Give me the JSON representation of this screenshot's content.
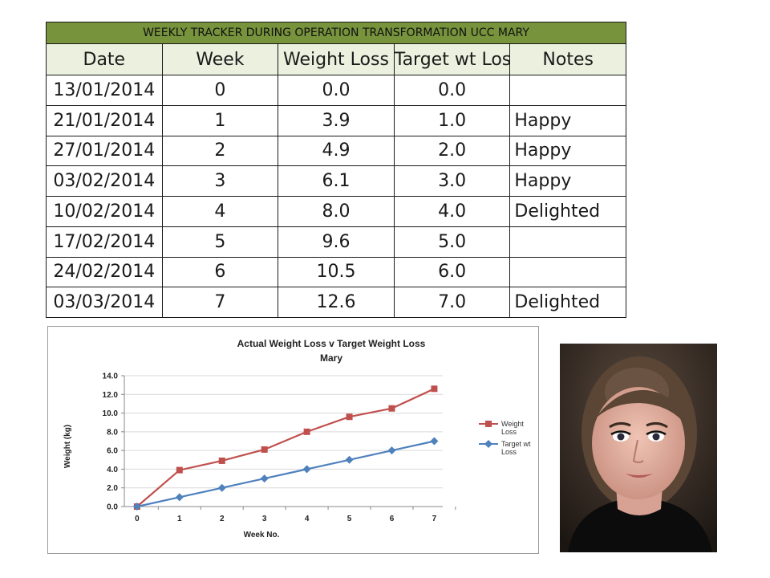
{
  "table": {
    "title": "WEEKLY TRACKER DURING OPERATION TRANSFORMATION UCC MARY",
    "headers": [
      "Date",
      "Week",
      "Weight Loss",
      "Target wt Loss",
      "Notes"
    ],
    "rows": [
      [
        "13/01/2014",
        "0",
        "0.0",
        "0.0",
        ""
      ],
      [
        "21/01/2014",
        "1",
        "3.9",
        "1.0",
        "Happy"
      ],
      [
        "27/01/2014",
        "2",
        "4.9",
        "2.0",
        "Happy"
      ],
      [
        "03/02/2014",
        "3",
        "6.1",
        "3.0",
        "Happy"
      ],
      [
        "10/02/2014",
        "4",
        "8.0",
        "4.0",
        "Delighted"
      ],
      [
        "17/02/2014",
        "5",
        "9.6",
        "5.0",
        ""
      ],
      [
        "24/02/2014",
        "6",
        "10.5",
        "6.0",
        ""
      ],
      [
        "03/03/2014",
        "7",
        "12.6",
        "7.0",
        "Delighted"
      ]
    ],
    "colors": {
      "title_bg": "#77933c",
      "header_bg": "#ebf1de"
    }
  },
  "chart_data": {
    "type": "line",
    "title": "Actual Weight Loss  v Target Weight Loss",
    "subtitle": "Mary",
    "xlabel": "Week No.",
    "ylabel": "Weight (kg)",
    "x": [
      0,
      1,
      2,
      3,
      4,
      5,
      6,
      7
    ],
    "ylim": [
      0,
      14
    ],
    "yticks": [
      "0.0",
      "2.0",
      "4.0",
      "6.0",
      "8.0",
      "10.0",
      "12.0",
      "14.0"
    ],
    "grid": "horizontal",
    "legend": "right",
    "series": [
      {
        "name": "Weight Loss",
        "legend_lines": [
          "Weight",
          "Loss"
        ],
        "marker": "square",
        "color": "#c0504d",
        "values": [
          0.0,
          3.9,
          4.9,
          6.1,
          8.0,
          9.6,
          10.5,
          12.6
        ]
      },
      {
        "name": "Target wt Loss",
        "legend_lines": [
          "Target wt",
          "Loss"
        ],
        "marker": "diamond",
        "color": "#4f81bd",
        "values": [
          0.0,
          1.0,
          2.0,
          3.0,
          4.0,
          5.0,
          6.0,
          7.0
        ]
      }
    ]
  },
  "photo": {
    "subject": "portrait-photo"
  }
}
